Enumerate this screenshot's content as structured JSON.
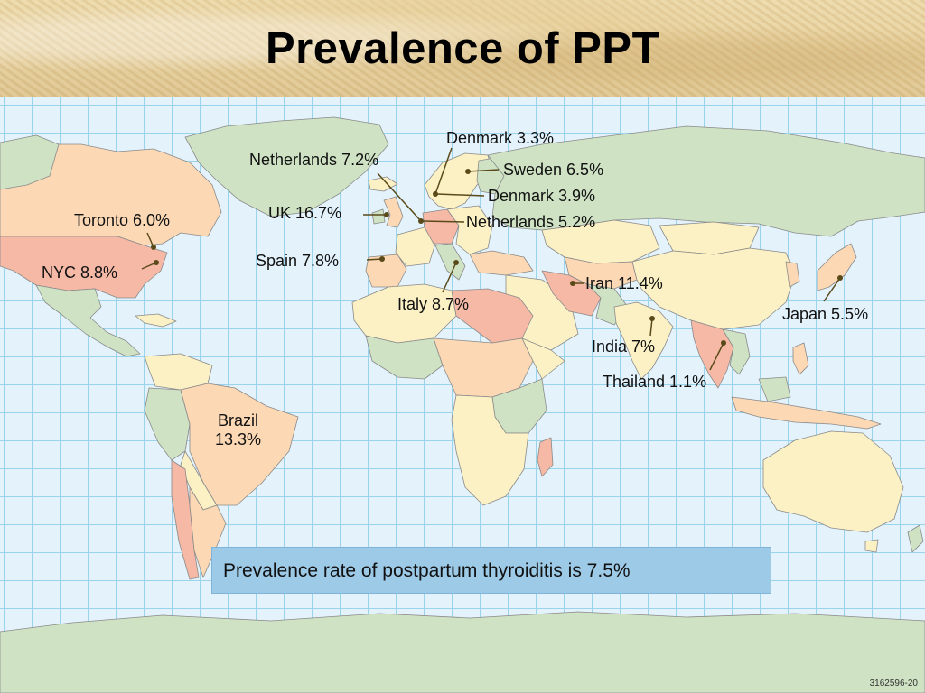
{
  "title": "Prevalence of PPT",
  "labels": {
    "denmark_top": "Denmark 3.3%",
    "netherlands_left": "Netherlands 7.2%",
    "sweden": "Sweden 6.5%",
    "denmark_right": "Denmark 3.9%",
    "uk": "UK 16.7%",
    "netherlands_right": "Netherlands 5.2%",
    "toronto": "Toronto 6.0%",
    "nyc": "NYC 8.8%",
    "spain": "Spain 7.8%",
    "iran": "Iran 11.4%",
    "italy": "Italy 8.7%",
    "japan": "Japan 5.5%",
    "india": "India 7%",
    "thailand": "Thailand 1.1%",
    "brazil_name": "Brazil",
    "brazil_value": "13.3%"
  },
  "info_box": "Prevalence rate of postpartum thyroiditis is 7.5%",
  "footnote": "3162596-20",
  "colors": {
    "ocean": "#e3f2fb",
    "grid": "#9ad3ec",
    "land_green": "#cfe3c4",
    "land_yellow": "#fbf1c4",
    "land_orange": "#fcd8b4",
    "land_pink": "#f5b9a6",
    "leader": "#5a4a1a",
    "info_box": "#9dcae7"
  }
}
